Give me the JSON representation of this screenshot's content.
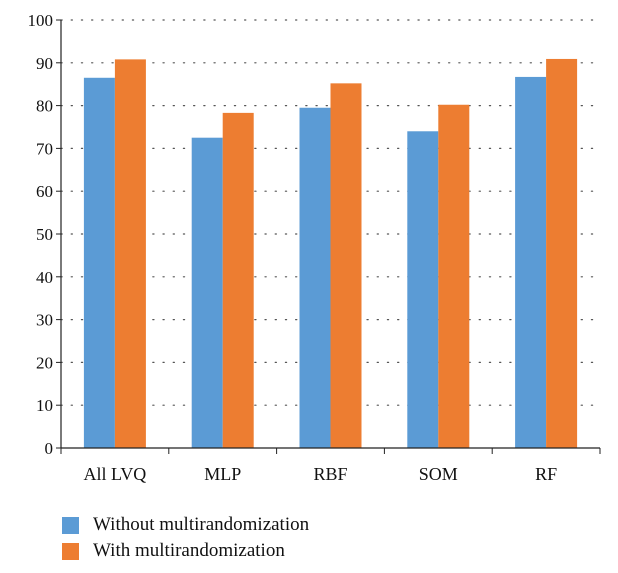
{
  "chart_data": {
    "type": "bar",
    "title": "",
    "xlabel": "",
    "ylabel": "",
    "ylim": [
      0,
      100
    ],
    "yticks": [
      0,
      10,
      20,
      30,
      40,
      50,
      60,
      70,
      80,
      90,
      100
    ],
    "categories": [
      "All LVQ",
      "MLP",
      "RBF",
      "SOM",
      "RF"
    ],
    "series": [
      {
        "name": "Without multirandomization",
        "color": "#5b9bd5",
        "values": [
          86.5,
          72.5,
          79.5,
          74,
          86.7
        ]
      },
      {
        "name": "With multirandomization",
        "color": "#ed7d31",
        "values": [
          90.8,
          78.3,
          85.2,
          80.2,
          90.9
        ]
      }
    ],
    "grid": "horizontal-dotted",
    "legend_position": "bottom-left"
  }
}
